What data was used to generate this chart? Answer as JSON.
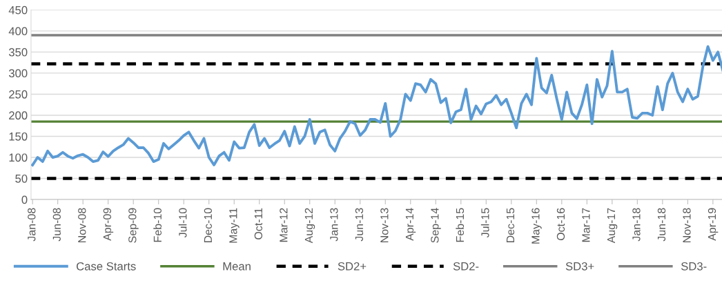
{
  "chart_data": {
    "type": "line",
    "categories": [
      "Jan-08",
      null,
      null,
      null,
      null,
      "Jun-08",
      null,
      null,
      null,
      null,
      "Nov-08",
      null,
      null,
      null,
      null,
      "Apr-09",
      null,
      null,
      null,
      null,
      "Sep-09",
      null,
      null,
      null,
      null,
      "Feb-10",
      null,
      null,
      null,
      null,
      "Jul-10",
      null,
      null,
      null,
      null,
      "Dec-10",
      null,
      null,
      null,
      null,
      "May-11",
      null,
      null,
      null,
      null,
      "Oct-11",
      null,
      null,
      null,
      null,
      "Mar-12",
      null,
      null,
      null,
      null,
      "Aug-12",
      null,
      null,
      null,
      null,
      "Jan-13",
      null,
      null,
      null,
      null,
      "Jun-13",
      null,
      null,
      null,
      null,
      "Nov-13",
      null,
      null,
      null,
      null,
      "Apr-14",
      null,
      null,
      null,
      null,
      "Sep-14",
      null,
      null,
      null,
      null,
      "Feb-15",
      null,
      null,
      null,
      null,
      "Jul-15",
      null,
      null,
      null,
      null,
      "Dec-15",
      null,
      null,
      null,
      null,
      "May-16",
      null,
      null,
      null,
      null,
      "Oct-16",
      null,
      null,
      null,
      null,
      "Mar-17",
      null,
      null,
      null,
      null,
      "Aug-17",
      null,
      null,
      null,
      null,
      "Jan-18",
      null,
      null,
      null,
      null,
      "Jun-18",
      null,
      null,
      null,
      null,
      "Nov-18",
      null,
      null,
      null,
      null,
      "Apr-19",
      null,
      null
    ],
    "series": [
      {
        "name": "Case Starts",
        "color": "#5b9bd5",
        "values": [
          82,
          100,
          90,
          115,
          100,
          103,
          112,
          103,
          98,
          104,
          107,
          100,
          90,
          93,
          113,
          102,
          115,
          123,
          130,
          145,
          135,
          123,
          123,
          110,
          90,
          95,
          133,
          120,
          130,
          140,
          152,
          160,
          140,
          122,
          145,
          100,
          82,
          103,
          112,
          93,
          137,
          122,
          123,
          160,
          178,
          128,
          145,
          123,
          132,
          140,
          162,
          127,
          173,
          133,
          150,
          190,
          133,
          160,
          165,
          130,
          115,
          145,
          162,
          185,
          180,
          152,
          165,
          190,
          190,
          183,
          228,
          150,
          163,
          190,
          250,
          235,
          275,
          272,
          255,
          285,
          275,
          230,
          240,
          182,
          208,
          213,
          262,
          190,
          222,
          203,
          227,
          232,
          247,
          225,
          238,
          205,
          170,
          228,
          250,
          225,
          335,
          265,
          253,
          295,
          240,
          190,
          255,
          205,
          192,
          225,
          272,
          180,
          285,
          243,
          270,
          352,
          255,
          255,
          262,
          195,
          193,
          205,
          205,
          200,
          268,
          213,
          275,
          300,
          255,
          232,
          262,
          238,
          245,
          315,
          363,
          330,
          350,
          305
        ]
      }
    ],
    "ref_lines": [
      {
        "axis": "y",
        "value": 185,
        "label": "Mean",
        "color": "#548235",
        "line_style": "solid"
      },
      {
        "axis": "y",
        "value": 322,
        "label": "SD2+",
        "color": "#000000",
        "line_style": "dashed"
      },
      {
        "axis": "y",
        "value": 50,
        "label": "SD2-",
        "color": "#000000",
        "line_style": "dashed"
      },
      {
        "axis": "y",
        "value": 390,
        "label": "SD3+",
        "color": "#808080",
        "line_style": "solid"
      },
      {
        "label": "SD3-",
        "color": "#808080",
        "line_style": "solid"
      }
    ],
    "ylim": [
      0,
      450
    ],
    "yticks": [
      0,
      50,
      100,
      150,
      200,
      250,
      300,
      350,
      400,
      450
    ],
    "grid": "y",
    "legend": "bottom",
    "marker": "none",
    "line_style": "solid"
  }
}
